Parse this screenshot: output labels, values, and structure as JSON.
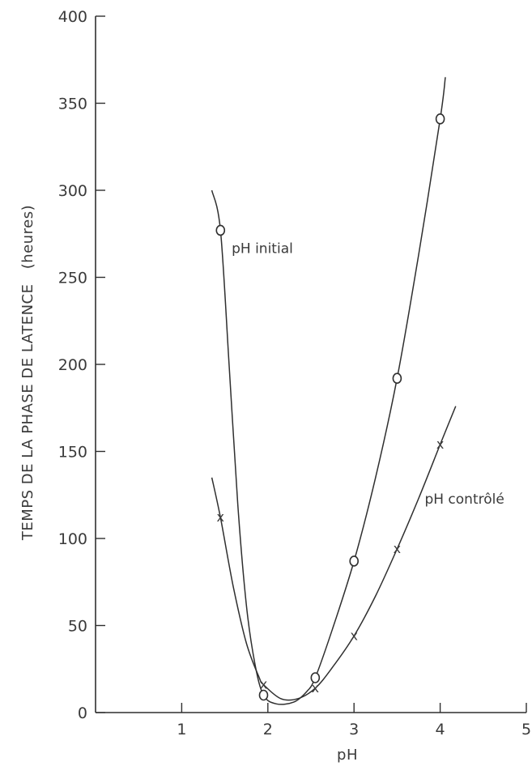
{
  "chart_data": {
    "type": "scatter",
    "title": "",
    "xlabel": "pH",
    "ylabel_main": "TEMPS DE LA PHASE DE LATENCE",
    "ylabel_unit": "(heures)",
    "xlim": [
      0,
      5
    ],
    "ylim": [
      0,
      400
    ],
    "x_ticks": [
      1,
      2,
      3,
      4,
      5
    ],
    "y_ticks": [
      0,
      50,
      100,
      150,
      200,
      250,
      300,
      350,
      400
    ],
    "grid": false,
    "legend": "none",
    "series": [
      {
        "name": "pH initial",
        "marker": "o",
        "points": [
          {
            "x": 1.45,
            "y": 277
          },
          {
            "x": 1.95,
            "y": 10
          },
          {
            "x": 2.55,
            "y": 20
          },
          {
            "x": 3.0,
            "y": 87
          },
          {
            "x": 3.5,
            "y": 192
          },
          {
            "x": 4.0,
            "y": 341
          }
        ],
        "curve": [
          [
            1.35,
            300
          ],
          [
            1.45,
            277
          ],
          [
            1.55,
            200
          ],
          [
            1.65,
            120
          ],
          [
            1.75,
            62
          ],
          [
            1.85,
            28
          ],
          [
            1.95,
            10
          ],
          [
            2.1,
            5
          ],
          [
            2.3,
            6
          ],
          [
            2.45,
            12
          ],
          [
            2.55,
            20
          ],
          [
            2.75,
            48
          ],
          [
            3.0,
            87
          ],
          [
            3.25,
            135
          ],
          [
            3.5,
            192
          ],
          [
            3.75,
            263
          ],
          [
            4.0,
            341
          ],
          [
            4.06,
            365
          ]
        ]
      },
      {
        "name": "pH contrôlé",
        "marker": "x",
        "points": [
          {
            "x": 1.45,
            "y": 112
          },
          {
            "x": 1.95,
            "y": 16
          },
          {
            "x": 2.55,
            "y": 14
          },
          {
            "x": 3.0,
            "y": 44
          },
          {
            "x": 3.5,
            "y": 94
          },
          {
            "x": 4.0,
            "y": 154
          }
        ],
        "curve": [
          [
            1.35,
            135
          ],
          [
            1.45,
            112
          ],
          [
            1.6,
            72
          ],
          [
            1.75,
            40
          ],
          [
            1.9,
            20
          ],
          [
            1.95,
            16
          ],
          [
            2.15,
            8
          ],
          [
            2.35,
            8
          ],
          [
            2.55,
            14
          ],
          [
            2.75,
            26
          ],
          [
            3.0,
            44
          ],
          [
            3.25,
            67
          ],
          [
            3.5,
            94
          ],
          [
            3.75,
            123
          ],
          [
            4.0,
            154
          ],
          [
            4.18,
            176
          ]
        ]
      }
    ],
    "annotations": [
      {
        "text": "pH initial",
        "x": 1.58,
        "y": 264
      },
      {
        "text": "pH contrôlé",
        "x": 3.82,
        "y": 120
      }
    ]
  }
}
